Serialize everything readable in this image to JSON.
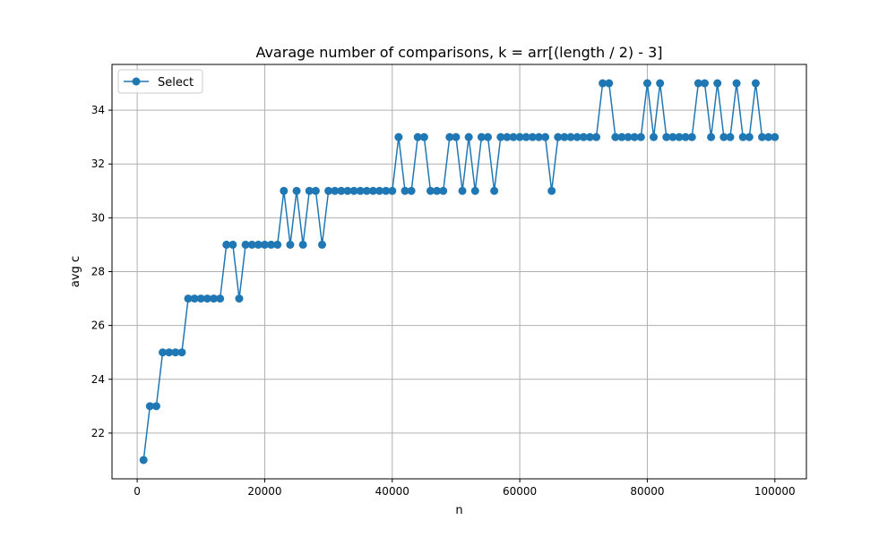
{
  "chart_data": {
    "type": "line",
    "title": "Avarage number of comparisons, k = arr[(length / 2) - 3]",
    "xlabel": "n",
    "ylabel": "avg c",
    "xlim": [
      -3950,
      104950
    ],
    "ylim": [
      20.3,
      35.7
    ],
    "xticks": [
      0,
      20000,
      40000,
      60000,
      80000,
      100000
    ],
    "yticks": [
      22,
      24,
      26,
      28,
      30,
      32,
      34
    ],
    "grid": true,
    "legend": "top-left",
    "color": "#1f77b4",
    "series": [
      {
        "name": "Select",
        "marker": "circle",
        "x": [
          1000,
          2000,
          3000,
          4000,
          5000,
          6000,
          7000,
          8000,
          9000,
          10000,
          11000,
          12000,
          13000,
          14000,
          15000,
          16000,
          17000,
          18000,
          19000,
          20000,
          21000,
          22000,
          23000,
          24000,
          25000,
          26000,
          27000,
          28000,
          29000,
          30000,
          31000,
          32000,
          33000,
          34000,
          35000,
          36000,
          37000,
          38000,
          39000,
          40000,
          41000,
          42000,
          43000,
          44000,
          45000,
          46000,
          47000,
          48000,
          49000,
          50000,
          51000,
          52000,
          53000,
          54000,
          55000,
          56000,
          57000,
          58000,
          59000,
          60000,
          61000,
          62000,
          63000,
          64000,
          65000,
          66000,
          67000,
          68000,
          69000,
          70000,
          71000,
          72000,
          73000,
          74000,
          75000,
          76000,
          77000,
          78000,
          79000,
          80000,
          81000,
          82000,
          83000,
          84000,
          85000,
          86000,
          87000,
          88000,
          89000,
          90000,
          91000,
          92000,
          93000,
          94000,
          95000,
          96000,
          97000,
          98000,
          99000,
          100000
        ],
        "y": [
          21,
          23,
          23,
          25,
          25,
          25,
          25,
          27,
          27,
          27,
          27,
          27,
          27,
          29,
          29,
          27,
          29,
          29,
          29,
          29,
          29,
          29,
          31,
          29,
          31,
          29,
          31,
          31,
          29,
          31,
          31,
          31,
          31,
          31,
          31,
          31,
          31,
          31,
          31,
          31,
          33,
          31,
          31,
          33,
          33,
          31,
          31,
          31,
          33,
          33,
          31,
          33,
          31,
          33,
          33,
          31,
          33,
          33,
          33,
          33,
          33,
          33,
          33,
          33,
          31,
          33,
          33,
          33,
          33,
          33,
          33,
          33,
          35,
          35,
          33,
          33,
          33,
          33,
          33,
          35,
          33,
          35,
          33,
          33,
          33,
          33,
          33,
          35,
          35,
          33,
          35,
          33,
          33,
          35,
          33,
          33,
          35,
          33,
          33,
          33
        ]
      }
    ]
  }
}
